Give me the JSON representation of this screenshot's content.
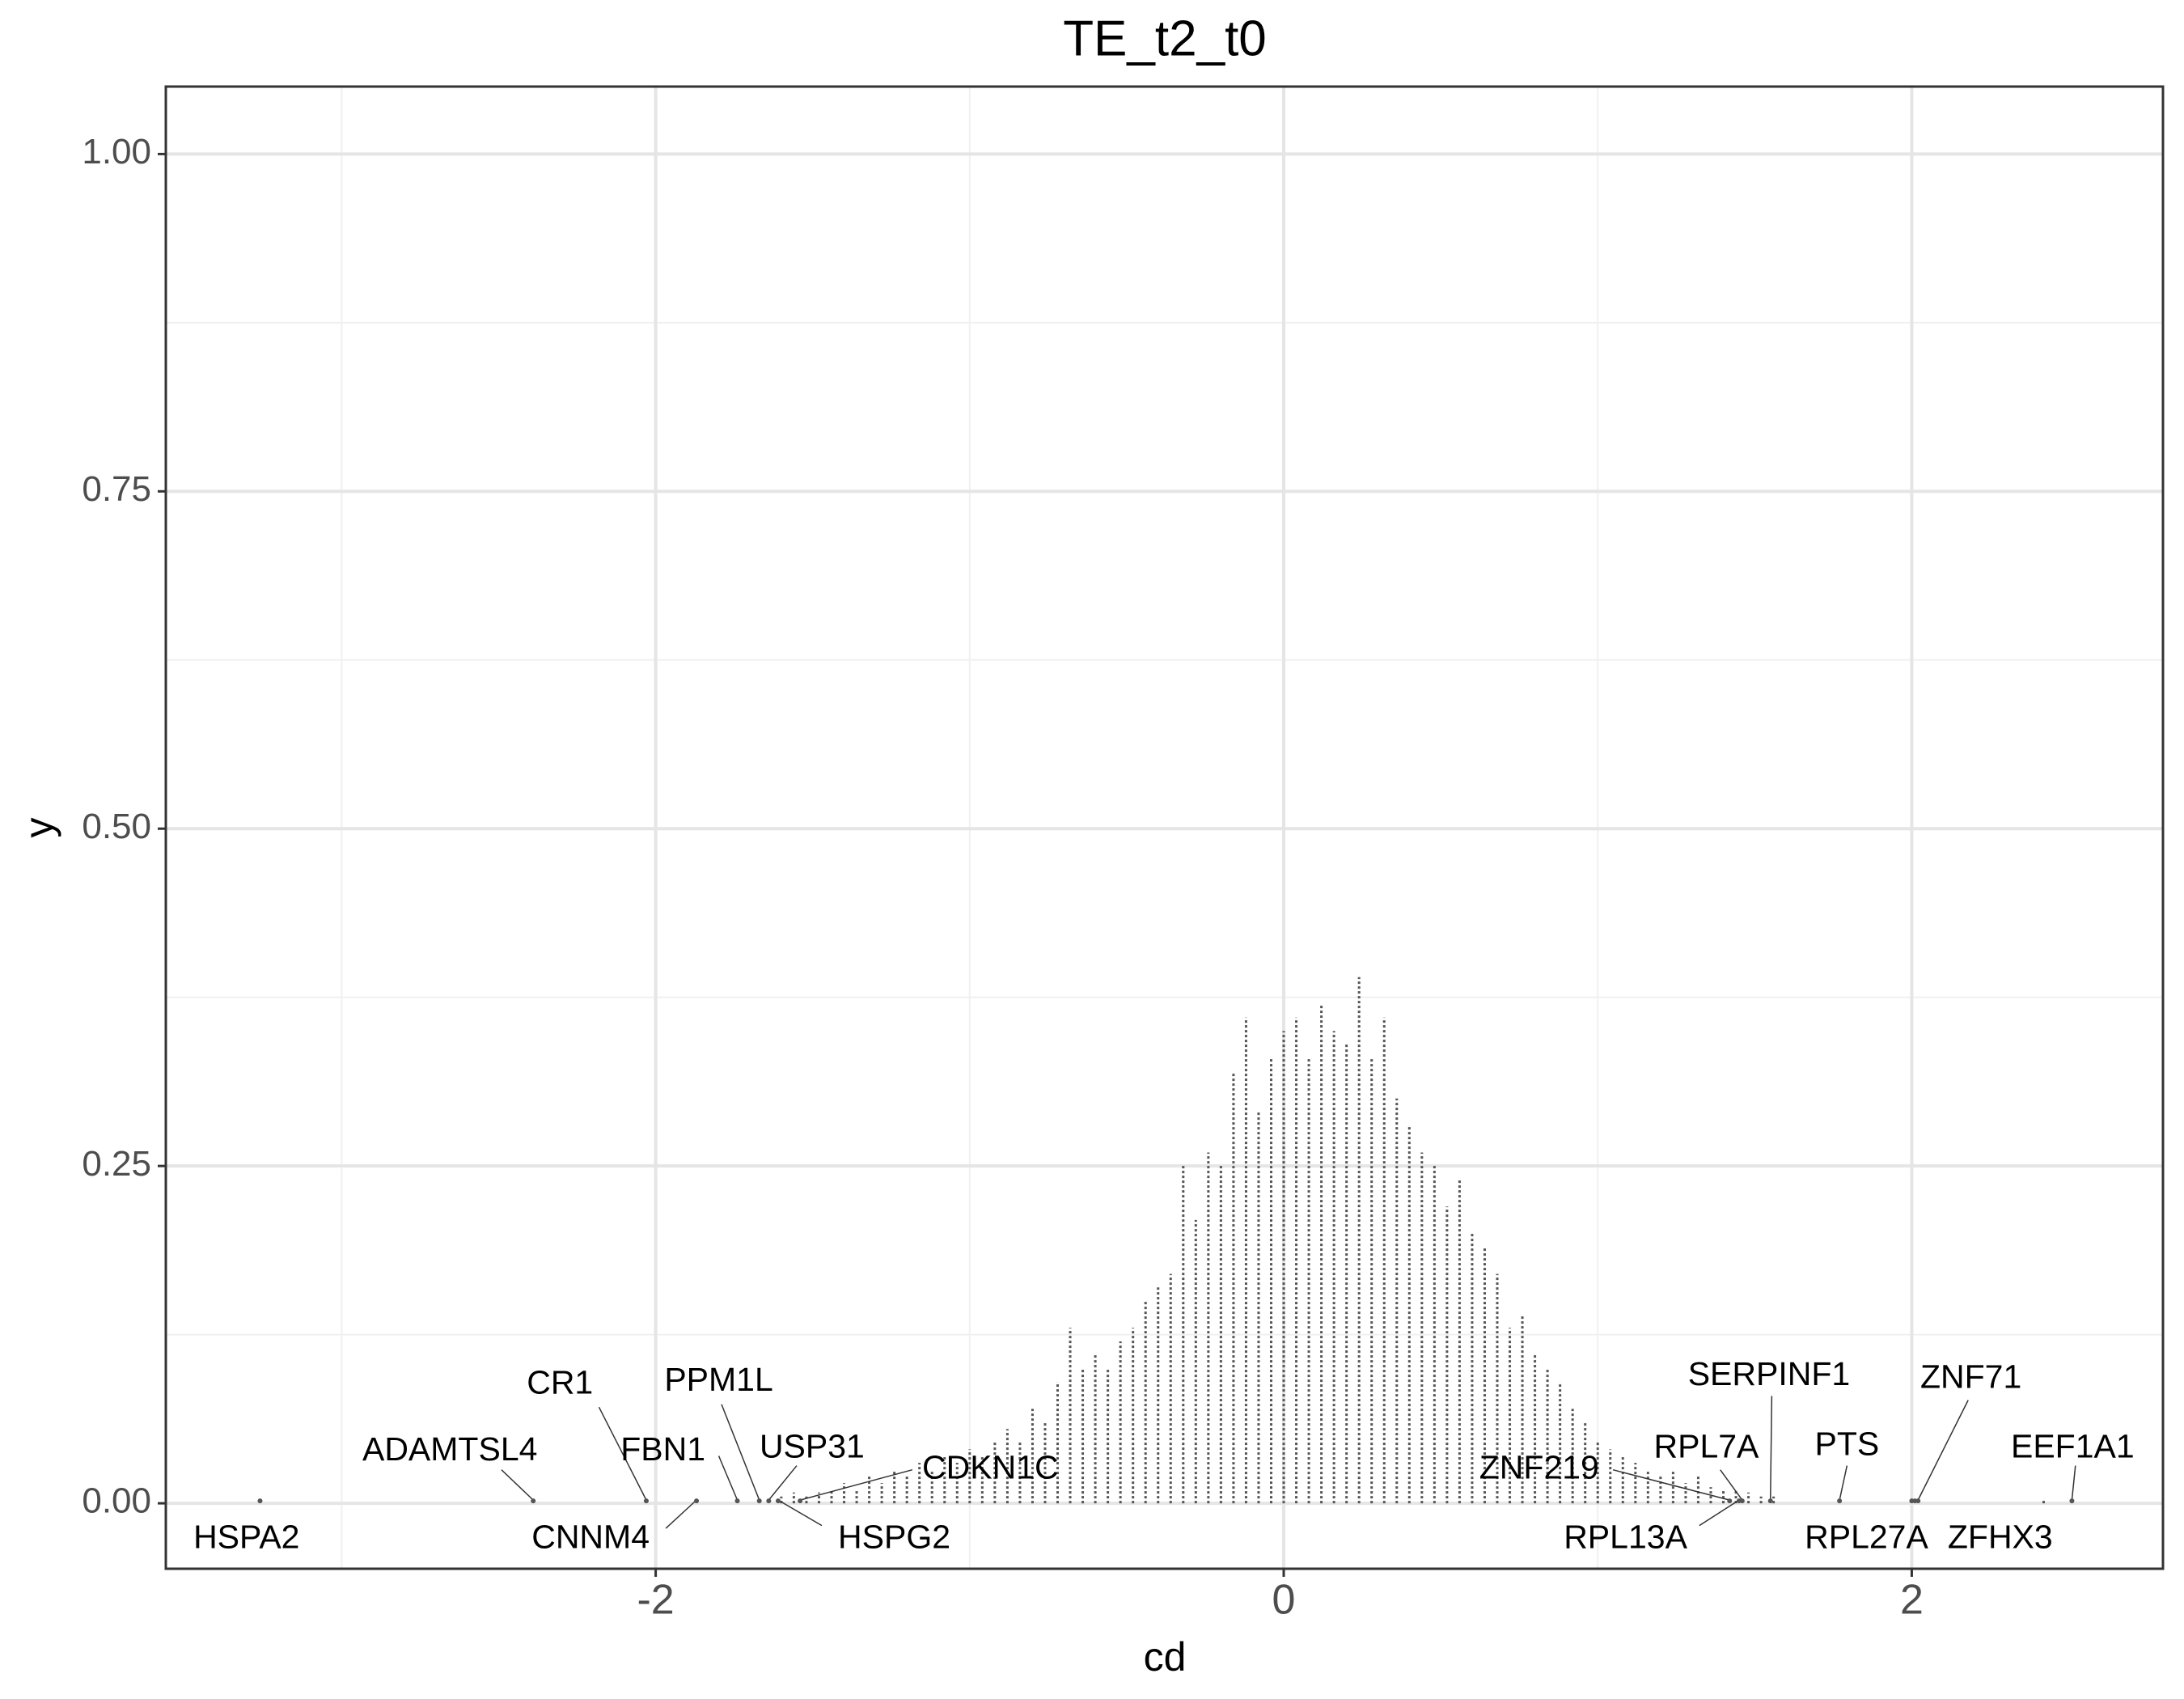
{
  "chart_data": {
    "type": "dotplot",
    "title": "TE_t2_t0",
    "x_label": "cd",
    "y_label": "y",
    "x": [
      -1.6,
      -1.56,
      -1.52,
      -1.48,
      -1.44,
      -1.4,
      -1.36,
      -1.32,
      -1.28,
      -1.24,
      -1.2,
      -1.16,
      -1.12,
      -1.08,
      -1.04,
      -1.0,
      -0.96,
      -0.92,
      -0.88,
      -0.84,
      -0.8,
      -0.76,
      -0.72,
      -0.68,
      -0.64,
      -0.6,
      -0.56,
      -0.52,
      -0.48,
      -0.44,
      -0.4,
      -0.36,
      -0.32,
      -0.28,
      -0.24,
      -0.2,
      -0.16,
      -0.12,
      -0.08,
      -0.04,
      0.0,
      0.04,
      0.08,
      0.12,
      0.16,
      0.2,
      0.24,
      0.28,
      0.32,
      0.36,
      0.4,
      0.44,
      0.48,
      0.52,
      0.56,
      0.6,
      0.64,
      0.68,
      0.72,
      0.76,
      0.8,
      0.84,
      0.88,
      0.92,
      0.96,
      1.0,
      1.04,
      1.08,
      1.12,
      1.16,
      1.2,
      1.24,
      1.28,
      1.32,
      1.36,
      1.4,
      1.44,
      1.48,
      1.52,
      1.56,
      2.42
    ],
    "values": [
      0.005,
      0.008,
      0.005,
      0.008,
      0.01,
      0.015,
      0.01,
      0.02,
      0.015,
      0.025,
      0.02,
      0.03,
      0.025,
      0.035,
      0.03,
      0.04,
      0.035,
      0.045,
      0.055,
      0.045,
      0.07,
      0.06,
      0.09,
      0.13,
      0.1,
      0.11,
      0.1,
      0.12,
      0.13,
      0.15,
      0.16,
      0.17,
      0.25,
      0.21,
      0.26,
      0.25,
      0.32,
      0.36,
      0.29,
      0.33,
      0.35,
      0.36,
      0.33,
      0.37,
      0.35,
      0.34,
      0.39,
      0.33,
      0.36,
      0.3,
      0.28,
      0.26,
      0.25,
      0.22,
      0.24,
      0.2,
      0.19,
      0.17,
      0.13,
      0.14,
      0.11,
      0.1,
      0.09,
      0.07,
      0.06,
      0.045,
      0.04,
      0.035,
      0.03,
      0.025,
      0.02,
      0.025,
      0.015,
      0.02,
      0.012,
      0.01,
      0.01,
      0.008,
      0.005,
      0.005,
      0.003
    ],
    "color": "#555555",
    "points": {
      "labels": [
        "HSPA2",
        "ADAMTSL4",
        "CR1",
        "CNNM4",
        "FBN1",
        "PPM1L",
        "USP31",
        "HSPG2",
        "CDKN1C",
        "ZNF219",
        "RPL13A",
        "RPL7A",
        "SERPINF1",
        "PTS",
        "RPL27A",
        "ZFHX3",
        "ZNF71",
        "EEF1A1"
      ],
      "x": [
        -3.26,
        -2.39,
        -2.03,
        -1.87,
        -1.74,
        -1.67,
        -1.64,
        -1.61,
        -1.54,
        1.42,
        1.45,
        1.46,
        1.55,
        1.77,
        2.0,
        2.01,
        2.02,
        2.51
      ],
      "y": [
        0,
        0,
        0,
        0,
        0,
        0,
        0,
        0,
        0,
        0,
        0,
        0,
        0,
        0,
        0,
        0,
        0,
        0
      ]
    },
    "xlim": [
      -3.56,
      2.8
    ],
    "ylim": [
      -0.0485,
      1.05
    ],
    "xticks": [
      -2,
      0,
      2
    ],
    "minor_xticks": [
      -3,
      -1,
      1
    ],
    "yticks": [
      {
        "value": 0,
        "label": "0.00"
      },
      {
        "value": 0.25,
        "label": "0.25"
      },
      {
        "value": 0.5,
        "label": "0.50"
      },
      {
        "value": 0.75,
        "label": "0.75"
      },
      {
        "value": 1,
        "label": "1.00"
      }
    ],
    "minor_yticks": [
      0.125,
      0.375,
      0.625,
      0.875
    ],
    "grid": true
  }
}
